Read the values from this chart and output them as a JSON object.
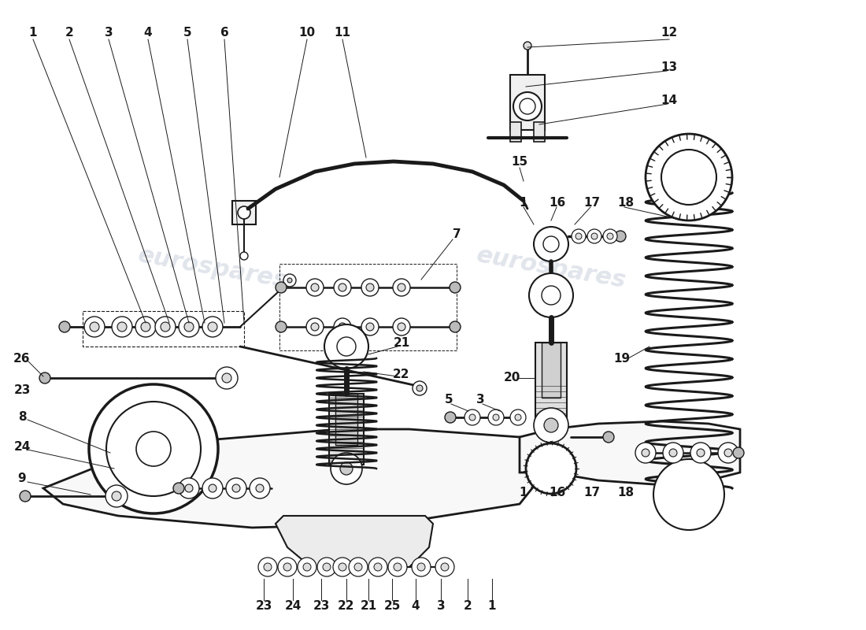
{
  "bg_color": "#ffffff",
  "line_color": "#1a1a1a",
  "watermark_color": "#c8d0dc",
  "watermark_text": "eurospares",
  "fig_width": 11.0,
  "fig_height": 8.0,
  "dpi": 100,
  "labels_topleft": [
    "1",
    "2",
    "3",
    "4",
    "5",
    "6"
  ],
  "labels_topmid": [
    "10",
    "11"
  ],
  "labels_topright_up": [
    "12",
    "13",
    "14",
    "15"
  ],
  "labels_right_top": [
    "1",
    "16",
    "17",
    "18"
  ],
  "labels_left_mid": [
    "26",
    "23",
    "8",
    "24",
    "9"
  ],
  "labels_bottom": [
    "23",
    "24",
    "23",
    "22",
    "21",
    "25",
    "4",
    "3",
    "2",
    "1"
  ],
  "label_7": "7",
  "label_19": "19",
  "label_20": "20",
  "label_21": "21",
  "label_22": "22",
  "label_5": "5",
  "label_3": "3"
}
